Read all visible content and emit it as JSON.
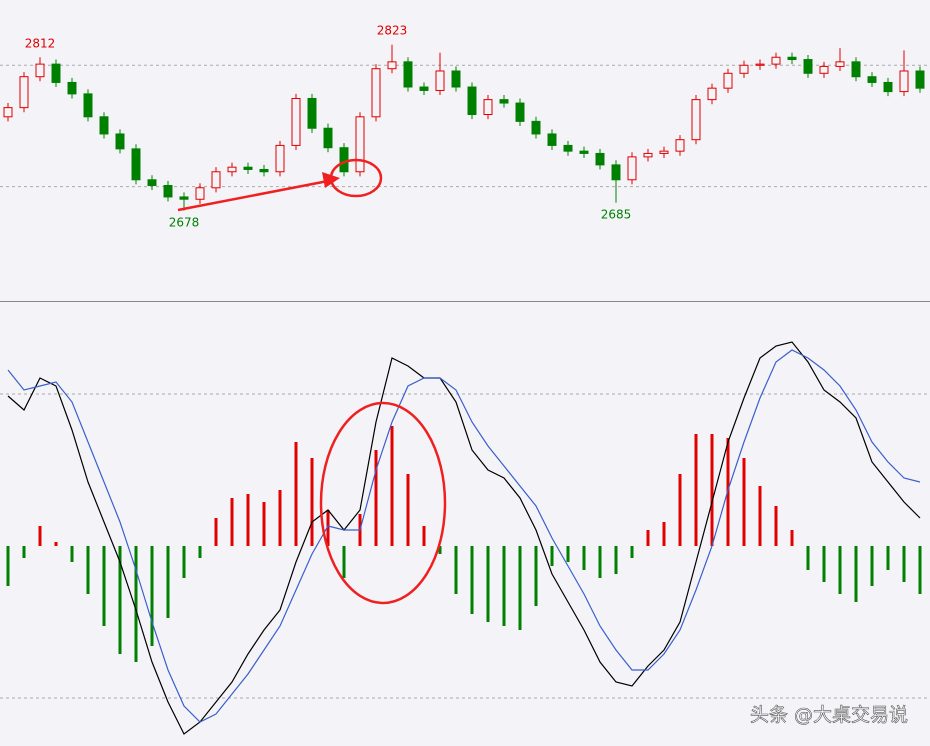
{
  "chart_data": [
    {
      "type": "candlestick",
      "up_color": "#e00000",
      "down_color": "#008000",
      "ylim": [
        2600,
        2862
      ],
      "gridlines": [
        2805,
        2699
      ],
      "candles": [
        [
          2760,
          2772,
          2756,
          2768
        ],
        [
          2768,
          2799,
          2764,
          2795
        ],
        [
          2795,
          2812,
          2791,
          2806
        ],
        [
          2806,
          2810,
          2786,
          2790
        ],
        [
          2790,
          2794,
          2776,
          2780
        ],
        [
          2780,
          2784,
          2756,
          2760
        ],
        [
          2760,
          2764,
          2741,
          2745
        ],
        [
          2745,
          2749,
          2728,
          2732
        ],
        [
          2732,
          2736,
          2701,
          2705
        ],
        [
          2705,
          2709,
          2696,
          2700
        ],
        [
          2700,
          2704,
          2686,
          2690
        ],
        [
          2690,
          2694,
          2678,
          2688
        ],
        [
          2688,
          2702,
          2684,
          2698
        ],
        [
          2698,
          2716,
          2694,
          2712
        ],
        [
          2712,
          2720,
          2708,
          2716
        ],
        [
          2716,
          2720,
          2710,
          2714
        ],
        [
          2714,
          2718,
          2708,
          2712
        ],
        [
          2712,
          2739,
          2708,
          2735
        ],
        [
          2735,
          2780,
          2731,
          2776
        ],
        [
          2776,
          2780,
          2746,
          2750
        ],
        [
          2750,
          2754,
          2729,
          2733
        ],
        [
          2733,
          2737,
          2708,
          2712
        ],
        [
          2712,
          2764,
          2708,
          2760
        ],
        [
          2760,
          2806,
          2756,
          2802
        ],
        [
          2802,
          2823,
          2798,
          2808
        ],
        [
          2808,
          2812,
          2782,
          2786
        ],
        [
          2786,
          2790,
          2779,
          2783
        ],
        [
          2783,
          2816,
          2779,
          2800
        ],
        [
          2800,
          2804,
          2782,
          2786
        ],
        [
          2786,
          2790,
          2758,
          2762
        ],
        [
          2762,
          2779,
          2758,
          2775
        ],
        [
          2775,
          2779,
          2768,
          2772
        ],
        [
          2772,
          2776,
          2752,
          2756
        ],
        [
          2756,
          2760,
          2741,
          2745
        ],
        [
          2745,
          2749,
          2731,
          2735
        ],
        [
          2735,
          2739,
          2726,
          2730
        ],
        [
          2730,
          2734,
          2724,
          2728
        ],
        [
          2728,
          2732,
          2714,
          2718
        ],
        [
          2718,
          2722,
          2685,
          2705
        ],
        [
          2705,
          2729,
          2701,
          2725
        ],
        [
          2725,
          2732,
          2721,
          2728
        ],
        [
          2728,
          2734,
          2724,
          2730
        ],
        [
          2730,
          2744,
          2726,
          2740
        ],
        [
          2740,
          2779,
          2736,
          2775
        ],
        [
          2775,
          2789,
          2771,
          2785
        ],
        [
          2785,
          2802,
          2781,
          2798
        ],
        [
          2798,
          2809,
          2794,
          2805
        ],
        [
          2805,
          2810,
          2801,
          2806
        ],
        [
          2806,
          2816,
          2802,
          2812
        ],
        [
          2812,
          2816,
          2806,
          2810
        ],
        [
          2810,
          2814,
          2794,
          2798
        ],
        [
          2798,
          2808,
          2794,
          2804
        ],
        [
          2804,
          2820,
          2800,
          2808
        ],
        [
          2808,
          2812,
          2791,
          2795
        ],
        [
          2795,
          2799,
          2786,
          2790
        ],
        [
          2790,
          2794,
          2778,
          2782
        ],
        [
          2782,
          2818,
          2778,
          2800
        ],
        [
          2800,
          2804,
          2781,
          2785
        ]
      ],
      "annotations": [
        2812,
        2823,
        2678,
        2685
      ]
    },
    {
      "type": "macd",
      "ylim": [
        -50,
        61
      ],
      "gridlines": [
        38,
        -38
      ],
      "histogram": {
        "up_color": "#e00000",
        "down_color": "#008000",
        "values": [
          -10,
          -3,
          5,
          1,
          -4,
          -12,
          -20,
          -27,
          -29,
          -25,
          -18,
          -8,
          -3,
          7,
          12,
          13,
          11,
          14,
          26,
          22,
          9,
          -8,
          8,
          24,
          30,
          18,
          5,
          -2,
          -12,
          -17,
          -19,
          -20,
          -21,
          -15,
          -5,
          -4,
          -6,
          -8,
          -7,
          -3,
          4,
          6,
          18,
          28,
          28,
          27,
          22,
          15,
          10,
          4,
          -6,
          -9,
          -12,
          -14,
          -10,
          -6,
          -9,
          -12
        ]
      },
      "series": [
        {
          "color": "#000000",
          "values": [
            37.5,
            34,
            42,
            40,
            29,
            16,
            6,
            -4,
            -16,
            -29,
            -39,
            -47,
            -44,
            -39,
            -34,
            -27,
            -21,
            -16,
            -4,
            6,
            9,
            4,
            9,
            31,
            47,
            45,
            42,
            42,
            36,
            24,
            19,
            17,
            12,
            4,
            -7,
            -14,
            -21,
            -29,
            -34,
            -35,
            -30,
            -26,
            -19,
            -4,
            11,
            26,
            37,
            47,
            50,
            51,
            46,
            39,
            36,
            32,
            21,
            16,
            11,
            7
          ]
        },
        {
          "color": "#3a5fcd",
          "values": [
            44,
            39,
            40,
            41,
            36,
            26,
            16,
            6,
            -6,
            -19,
            -31,
            -40,
            -44,
            -42,
            -37,
            -32,
            -26,
            -20,
            -11,
            -2,
            5,
            4,
            4,
            19,
            31,
            40,
            42,
            42,
            39,
            31,
            25,
            20,
            15,
            10,
            2,
            -5,
            -12,
            -20,
            -26,
            -31,
            -31,
            -27,
            -21,
            -11,
            0,
            14,
            26,
            37,
            46,
            49,
            47,
            44,
            40,
            34,
            26,
            21,
            17,
            16
          ]
        }
      ]
    }
  ],
  "watermark": "头条 @大桌交易说"
}
